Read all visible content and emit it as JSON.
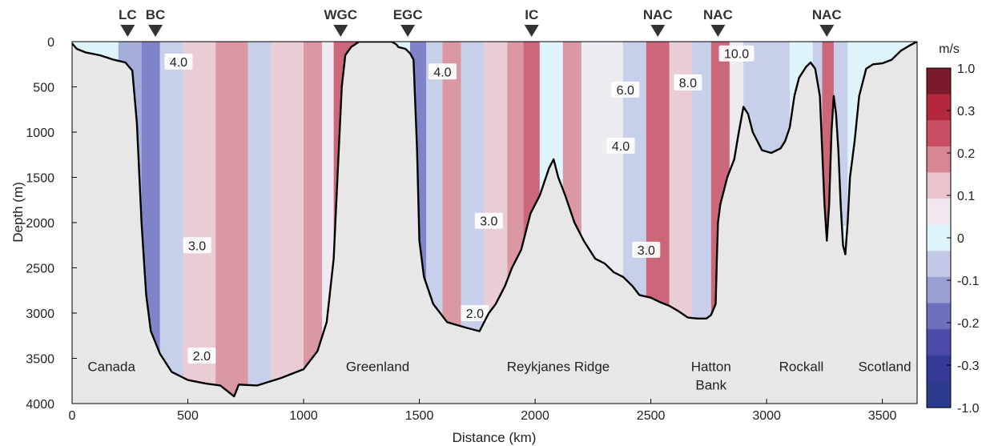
{
  "chart_data": {
    "type": "heatmap",
    "title": "",
    "xlabel": "Distance (km)",
    "ylabel": "Depth (m)",
    "xlim": [
      0,
      3650
    ],
    "ylim": [
      4000,
      0
    ],
    "x_ticks": [
      0,
      500,
      1000,
      1500,
      2000,
      2500,
      3000,
      3500
    ],
    "y_ticks": [
      0,
      500,
      1000,
      1500,
      2000,
      2500,
      3000,
      3500,
      4000
    ],
    "colorbar": {
      "unit": "m/s",
      "levels": [
        "1.0",
        "0.3",
        "0.2",
        "0.1",
        "0",
        "-0.1",
        "-0.2",
        "-0.3",
        "-1.0"
      ],
      "colors": [
        "#7a1a2a",
        "#b3283d",
        "#c94e63",
        "#d98694",
        "#ecc4cc",
        "#f1e7ef",
        "#dff3fa",
        "#c3c8e6",
        "#9a9fd3",
        "#6d70bd",
        "#4b4aa8",
        "#343a96",
        "#2b3b8e"
      ]
    },
    "current_markers": [
      {
        "label": "LC",
        "x": 240
      },
      {
        "label": "BC",
        "x": 360
      },
      {
        "label": "WGC",
        "x": 1160
      },
      {
        "label": "EGC",
        "x": 1450
      },
      {
        "label": "IC",
        "x": 1985
      },
      {
        "label": "NAC",
        "x": 2530
      },
      {
        "label": "NAC",
        "x": 2790
      },
      {
        "label": "NAC",
        "x": 3260
      }
    ],
    "region_labels": [
      {
        "text": "Canada",
        "x": 170,
        "y": 3590
      },
      {
        "text": "Greenland",
        "x": 1320,
        "y": 3590
      },
      {
        "text": "Reykjanes Ridge",
        "x": 2100,
        "y": 3590
      },
      {
        "text": "Hatton",
        "x": 2760,
        "y": 3590
      },
      {
        "text": "Bank",
        "x": 2760,
        "y": 3790
      },
      {
        "text": "Rockall",
        "x": 3150,
        "y": 3590
      },
      {
        "text": "Scotland",
        "x": 3510,
        "y": 3590
      }
    ],
    "bathymetry": [
      [
        0,
        20
      ],
      [
        20,
        80
      ],
      [
        60,
        120
      ],
      [
        120,
        150
      ],
      [
        180,
        200
      ],
      [
        230,
        230
      ],
      [
        260,
        320
      ],
      [
        280,
        900
      ],
      [
        300,
        2000
      ],
      [
        320,
        2800
      ],
      [
        340,
        3200
      ],
      [
        380,
        3450
      ],
      [
        430,
        3650
      ],
      [
        500,
        3740
      ],
      [
        580,
        3780
      ],
      [
        640,
        3800
      ],
      [
        700,
        3920
      ],
      [
        720,
        3790
      ],
      [
        800,
        3800
      ],
      [
        900,
        3720
      ],
      [
        1000,
        3620
      ],
      [
        1060,
        3420
      ],
      [
        1100,
        3100
      ],
      [
        1130,
        2400
      ],
      [
        1150,
        1300
      ],
      [
        1165,
        500
      ],
      [
        1180,
        150
      ],
      [
        1205,
        60
      ],
      [
        1240,
        0
      ],
      [
        1380,
        0
      ],
      [
        1400,
        30
      ],
      [
        1410,
        60
      ],
      [
        1440,
        80
      ],
      [
        1460,
        130
      ],
      [
        1475,
        200
      ],
      [
        1490,
        1200
      ],
      [
        1500,
        2200
      ],
      [
        1520,
        2600
      ],
      [
        1560,
        2900
      ],
      [
        1620,
        3100
      ],
      [
        1700,
        3160
      ],
      [
        1760,
        3200
      ],
      [
        1800,
        3000
      ],
      [
        1830,
        2900
      ],
      [
        1870,
        2700
      ],
      [
        1900,
        2500
      ],
      [
        1940,
        2300
      ],
      [
        1980,
        1900
      ],
      [
        2020,
        1700
      ],
      [
        2060,
        1400
      ],
      [
        2080,
        1300
      ],
      [
        2100,
        1500
      ],
      [
        2130,
        1700
      ],
      [
        2170,
        2000
      ],
      [
        2210,
        2200
      ],
      [
        2260,
        2400
      ],
      [
        2300,
        2450
      ],
      [
        2340,
        2550
      ],
      [
        2380,
        2600
      ],
      [
        2420,
        2700
      ],
      [
        2450,
        2800
      ],
      [
        2500,
        2830
      ],
      [
        2540,
        2880
      ],
      [
        2580,
        2920
      ],
      [
        2620,
        2980
      ],
      [
        2660,
        3050
      ],
      [
        2700,
        3060
      ],
      [
        2740,
        3060
      ],
      [
        2760,
        3020
      ],
      [
        2780,
        2900
      ],
      [
        2785,
        2400
      ],
      [
        2790,
        2000
      ],
      [
        2800,
        1800
      ],
      [
        2830,
        1500
      ],
      [
        2860,
        1300
      ],
      [
        2880,
        1000
      ],
      [
        2900,
        720
      ],
      [
        2920,
        800
      ],
      [
        2940,
        1000
      ],
      [
        2960,
        1100
      ],
      [
        2980,
        1200
      ],
      [
        3020,
        1230
      ],
      [
        3060,
        1180
      ],
      [
        3080,
        1100
      ],
      [
        3100,
        950
      ],
      [
        3120,
        600
      ],
      [
        3140,
        400
      ],
      [
        3170,
        280
      ],
      [
        3190,
        230
      ],
      [
        3210,
        300
      ],
      [
        3230,
        600
      ],
      [
        3240,
        1200
      ],
      [
        3250,
        1800
      ],
      [
        3260,
        2200
      ],
      [
        3270,
        1800
      ],
      [
        3280,
        1000
      ],
      [
        3290,
        600
      ],
      [
        3300,
        800
      ],
      [
        3310,
        1200
      ],
      [
        3320,
        1800
      ],
      [
        3330,
        2250
      ],
      [
        3340,
        2350
      ],
      [
        3350,
        2000
      ],
      [
        3360,
        1500
      ],
      [
        3380,
        1100
      ],
      [
        3400,
        600
      ],
      [
        3430,
        300
      ],
      [
        3460,
        250
      ],
      [
        3500,
        240
      ],
      [
        3540,
        200
      ],
      [
        3580,
        100
      ],
      [
        3620,
        40
      ],
      [
        3650,
        0
      ]
    ],
    "isotherms": [
      {
        "label": "4.0",
        "x": 460,
        "y": 220
      },
      {
        "label": "4.0",
        "x": 1600,
        "y": 330
      },
      {
        "label": "2.0",
        "x": 560,
        "y": 3470
      },
      {
        "label": "2.0",
        "x": 1740,
        "y": 3000
      },
      {
        "label": "3.0",
        "x": 540,
        "y": 2250
      },
      {
        "label": "3.0",
        "x": 1800,
        "y": 1980
      },
      {
        "label": "3.0",
        "x": 2480,
        "y": 2300
      },
      {
        "label": "4.0",
        "x": 2370,
        "y": 1150
      },
      {
        "label": "6.0",
        "x": 2390,
        "y": 530
      },
      {
        "label": "8.0",
        "x": 2660,
        "y": 450
      },
      {
        "label": "10.0",
        "x": 2870,
        "y": 130
      }
    ],
    "velocity_bands": [
      {
        "x0": 200,
        "x1": 300,
        "v": -0.2
      },
      {
        "x0": 300,
        "x1": 380,
        "v": -0.3
      },
      {
        "x0": 380,
        "x1": 480,
        "v": -0.1
      },
      {
        "x0": 480,
        "x1": 620,
        "v": 0.05
      },
      {
        "x0": 620,
        "x1": 760,
        "v": 0.1
      },
      {
        "x0": 760,
        "x1": 860,
        "v": -0.1
      },
      {
        "x0": 860,
        "x1": 1000,
        "v": 0.05
      },
      {
        "x0": 1000,
        "x1": 1080,
        "v": 0.1
      },
      {
        "x0": 1080,
        "x1": 1130,
        "v": 0.0
      },
      {
        "x0": 1130,
        "x1": 1230,
        "v": 0.2
      },
      {
        "x0": 1460,
        "x1": 1530,
        "v": -0.3
      },
      {
        "x0": 1530,
        "x1": 1600,
        "v": -0.1
      },
      {
        "x0": 1600,
        "x1": 1680,
        "v": 0.1
      },
      {
        "x0": 1680,
        "x1": 1780,
        "v": -0.1
      },
      {
        "x0": 1780,
        "x1": 1880,
        "v": 0.05
      },
      {
        "x0": 1880,
        "x1": 1950,
        "v": 0.1
      },
      {
        "x0": 1950,
        "x1": 2020,
        "v": 0.2
      },
      {
        "x0": 2020,
        "x1": 2120,
        "v": -0.05
      },
      {
        "x0": 2120,
        "x1": 2200,
        "v": 0.1
      },
      {
        "x0": 2200,
        "x1": 2380,
        "v": 0.0
      },
      {
        "x0": 2380,
        "x1": 2480,
        "v": -0.1
      },
      {
        "x0": 2480,
        "x1": 2580,
        "v": 0.2
      },
      {
        "x0": 2580,
        "x1": 2680,
        "v": 0.05
      },
      {
        "x0": 2680,
        "x1": 2760,
        "v": -0.1
      },
      {
        "x0": 2760,
        "x1": 2840,
        "v": 0.2
      },
      {
        "x0": 2840,
        "x1": 2900,
        "v": 0.0
      },
      {
        "x0": 2900,
        "x1": 3100,
        "v": -0.1
      },
      {
        "x0": 3200,
        "x1": 3240,
        "v": -0.1
      },
      {
        "x0": 3240,
        "x1": 3290,
        "v": 0.2
      },
      {
        "x0": 3290,
        "x1": 3350,
        "v": -0.1
      }
    ]
  }
}
